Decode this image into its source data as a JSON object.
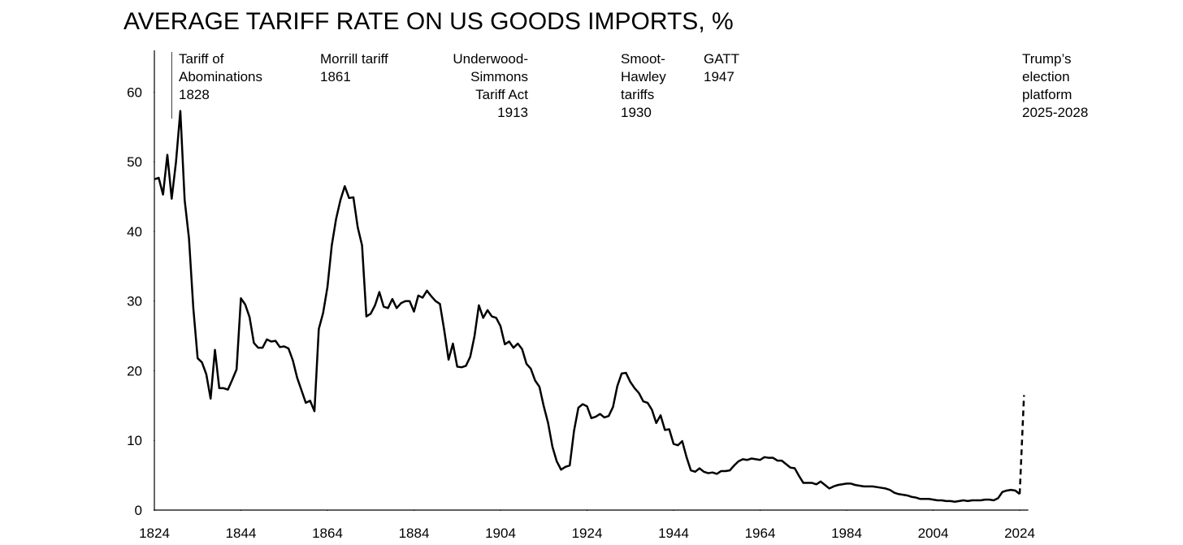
{
  "chart_data": {
    "type": "line",
    "title": "AVERAGE TARIFF RATE ON US GOODS IMPORTS, %",
    "annotations": [
      {
        "lines": [
          "Tariff of",
          "Abominations",
          "1828"
        ],
        "x": 1828
      },
      {
        "lines": [
          "Morrill tariff",
          "1861"
        ]
      },
      {
        "lines": [
          "Underwood-",
          "Simmons",
          "Tariff Act",
          "1913"
        ]
      },
      {
        "lines": [
          "Smoot-",
          "Hawley",
          "tariffs",
          "1930"
        ]
      },
      {
        "lines": [
          "GATT",
          "1947"
        ]
      },
      {
        "lines": [
          "Trump’s",
          "election",
          "platform",
          "2025-2028"
        ]
      }
    ],
    "xlim": [
      1824,
      2026
    ],
    "ylim": [
      0,
      66
    ],
    "xticks": [
      1824,
      1844,
      1864,
      1884,
      1904,
      1924,
      1944,
      1964,
      1984,
      2004,
      2024
    ],
    "yticks": [
      0,
      10,
      20,
      30,
      40,
      50,
      60
    ],
    "series": [
      {
        "color": "#000000",
        "dashed": false,
        "x": [
          1824,
          1825,
          1826,
          1827,
          1828,
          1829,
          1830,
          1831,
          1832,
          1833,
          1834,
          1835,
          1836,
          1837,
          1838,
          1839,
          1840,
          1841,
          1842,
          1843,
          1844,
          1845,
          1846,
          1847,
          1848,
          1849,
          1850,
          1851,
          1852,
          1853,
          1854,
          1855,
          1856,
          1857,
          1858,
          1859,
          1860,
          1861,
          1862,
          1863,
          1864,
          1865,
          1866,
          1867,
          1868,
          1869,
          1870,
          1871,
          1872,
          1873,
          1874,
          1875,
          1876,
          1877,
          1878,
          1879,
          1880,
          1881,
          1882,
          1883,
          1884,
          1885,
          1886,
          1887,
          1888,
          1889,
          1890,
          1891,
          1892,
          1893,
          1894,
          1895,
          1896,
          1897,
          1898,
          1899,
          1900,
          1901,
          1902,
          1903,
          1904,
          1905,
          1906,
          1907,
          1908,
          1909,
          1910,
          1911,
          1912,
          1913,
          1914,
          1915,
          1916,
          1917,
          1918,
          1919,
          1920,
          1921,
          1922,
          1923,
          1924,
          1925,
          1926,
          1927,
          1928,
          1929,
          1930,
          1931,
          1932,
          1933,
          1934,
          1935,
          1936,
          1937,
          1938,
          1939,
          1940,
          1941,
          1942,
          1943,
          1944,
          1945,
          1946,
          1947,
          1948,
          1949,
          1950,
          1951,
          1952,
          1953,
          1954,
          1955,
          1956,
          1957,
          1958,
          1959,
          1960,
          1961,
          1962,
          1963,
          1964,
          1965,
          1966,
          1967,
          1968,
          1969,
          1970,
          1971,
          1972,
          1973,
          1974,
          1975,
          1976,
          1977,
          1978,
          1979,
          1980,
          1981,
          1982,
          1983,
          1984,
          1985,
          1986,
          1987,
          1988,
          1989,
          1990,
          1991,
          1992,
          1993,
          1994,
          1995,
          1996,
          1997,
          1998,
          1999,
          2000,
          2001,
          2002,
          2003,
          2004,
          2005,
          2006,
          2007,
          2008,
          2009,
          2010,
          2011,
          2012,
          2013,
          2014,
          2015,
          2016,
          2017,
          2018,
          2019,
          2020,
          2021,
          2022,
          2023,
          2024
        ],
        "values": [
          47.5,
          47.7,
          45.3,
          51,
          44.7,
          50,
          57.3,
          44.5,
          39,
          29,
          21.8,
          21.2,
          19.5,
          16,
          23,
          17.5,
          17.5,
          17.3,
          18.7,
          20.2,
          30.4,
          29.5,
          27.7,
          24,
          23.3,
          23.3,
          24.5,
          24.2,
          24.3,
          23.4,
          23.5,
          23.2,
          21.5,
          19,
          17.2,
          15.4,
          15.7,
          14.2,
          26,
          28.3,
          32,
          38,
          41.8,
          44.5,
          46.5,
          44.8,
          44.9,
          40.6,
          38,
          27.8,
          28.2,
          29.4,
          31.3,
          29.2,
          29,
          30.3,
          29,
          29.7,
          30,
          30,
          28.5,
          30.8,
          30.5,
          31.5,
          30.7,
          30,
          29.6,
          25.8,
          21.6,
          23.9,
          20.6,
          20.5,
          20.7,
          22,
          25,
          29.4,
          27.6,
          28.7,
          27.8,
          27.6,
          26.4,
          23.8,
          24.2,
          23.3,
          23.9,
          23.1,
          21,
          20.3,
          18.6,
          17.7,
          14.9,
          12.5,
          9.1,
          7,
          5.8,
          6.2,
          6.4,
          11.4,
          14.7,
          15.2,
          14.9,
          13.2,
          13.4,
          13.8,
          13.3,
          13.5,
          14.8,
          17.8,
          19.6,
          19.7,
          18.4,
          17.5,
          16.8,
          15.6,
          15.4,
          14.4,
          12.5,
          13.6,
          11.5,
          11.6,
          9.5,
          9.3,
          9.9,
          7.6,
          5.7,
          5.5,
          6,
          5.5,
          5.3,
          5.4,
          5.2,
          5.6,
          5.6,
          5.7,
          6.4,
          7,
          7.3,
          7.2,
          7.4,
          7.3,
          7.2,
          7.6,
          7.5,
          7.5,
          7.1,
          7.1,
          6.6,
          6.1,
          6,
          4.9,
          3.9,
          3.9,
          3.9,
          3.7,
          4.1,
          3.6,
          3.1,
          3.4,
          3.6,
          3.7,
          3.8,
          3.8,
          3.6,
          3.5,
          3.4,
          3.4,
          3.4,
          3.3,
          3.2,
          3.1,
          2.9,
          2.5,
          2.3,
          2.2,
          2.1,
          1.9,
          1.8,
          1.6,
          1.6,
          1.6,
          1.5,
          1.4,
          1.4,
          1.3,
          1.3,
          1.2,
          1.3,
          1.4,
          1.3,
          1.4,
          1.4,
          1.4,
          1.5,
          1.5,
          1.4,
          1.7,
          2.6,
          2.8,
          2.9,
          2.8,
          2.3
        ]
      },
      {
        "color": "#000000",
        "dashed": true,
        "x": [
          2024,
          2025
        ],
        "values": [
          2.3,
          16.5
        ]
      }
    ]
  }
}
